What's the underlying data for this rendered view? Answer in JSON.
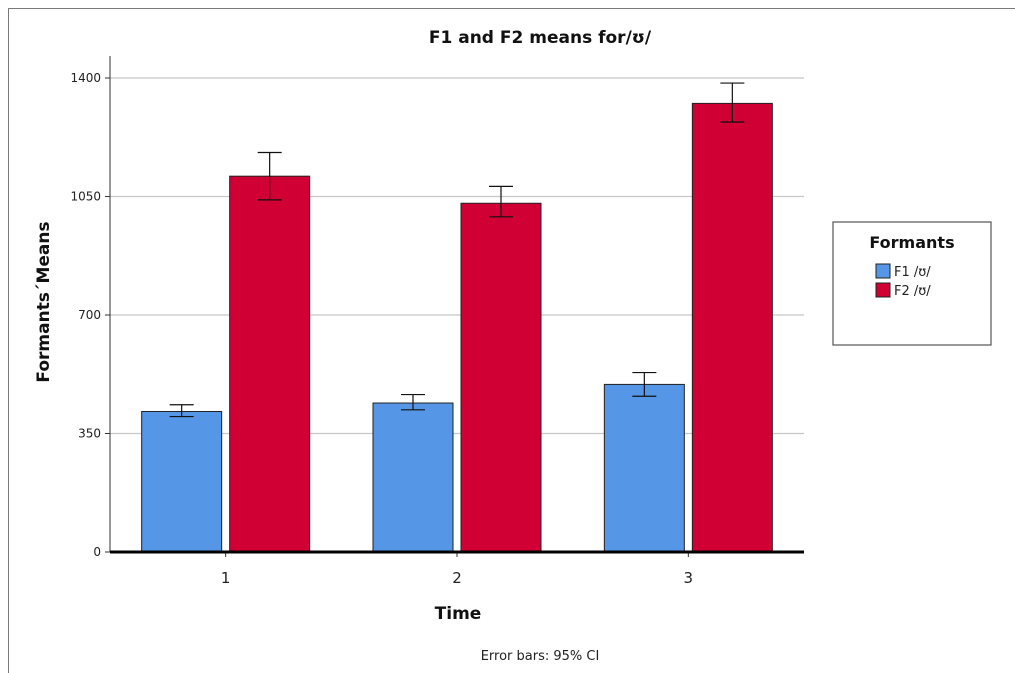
{
  "chart_data": {
    "type": "bar",
    "title": "F1 and F2 means for/ʊ/",
    "xlabel": "Time",
    "ylabel": "Formants´Means",
    "categories": [
      "1",
      "2",
      "3"
    ],
    "ylim": [
      0,
      1400
    ],
    "yticks": [
      "0",
      "350",
      "700",
      "1050",
      "1400"
    ],
    "grid": true,
    "legend": {
      "title": "Formants",
      "position": "right"
    },
    "series": [
      {
        "name": "F1 /ʊ/",
        "color": "#5596e6",
        "values": [
          415,
          440,
          495
        ],
        "ci_low": [
          400,
          420,
          460
        ],
        "ci_high": [
          435,
          465,
          530
        ]
      },
      {
        "name": "F2 /ʊ/",
        "color": "#d10034",
        "values": [
          1110,
          1030,
          1325
        ],
        "ci_low": [
          1040,
          990,
          1270
        ],
        "ci_high": [
          1180,
          1080,
          1385
        ]
      }
    ],
    "footnote": "Error bars: 95% CI"
  }
}
